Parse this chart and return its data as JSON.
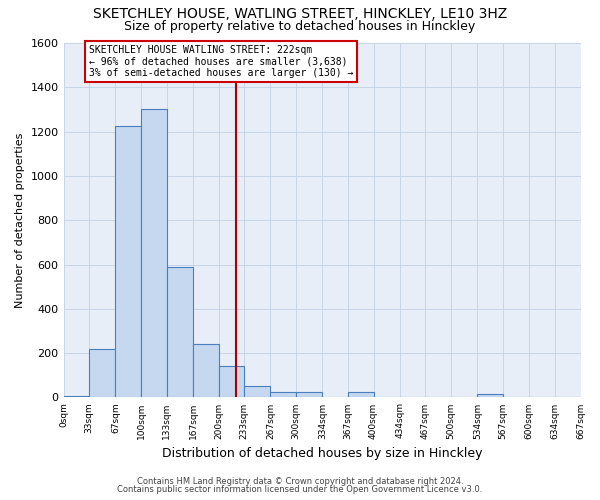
{
  "title": "SKETCHLEY HOUSE, WATLING STREET, HINCKLEY, LE10 3HZ",
  "subtitle": "Size of property relative to detached houses in Hinckley",
  "xlabel": "Distribution of detached houses by size in Hinckley",
  "ylabel": "Number of detached properties",
  "footer1": "Contains HM Land Registry data © Crown copyright and database right 2024.",
  "footer2": "Contains public sector information licensed under the Open Government Licence v3.0.",
  "bin_edges": [
    0,
    33,
    67,
    100,
    133,
    167,
    200,
    233,
    267,
    300,
    334,
    367,
    400,
    434,
    467,
    500,
    534,
    567,
    600,
    634,
    667
  ],
  "bar_values": [
    5,
    220,
    1225,
    1300,
    590,
    240,
    140,
    50,
    25,
    25,
    0,
    25,
    0,
    0,
    0,
    0,
    15,
    0,
    0,
    0
  ],
  "bar_color": "#c5d8f0",
  "bar_edge_color": "#4a7fbf",
  "property_size": 222,
  "vline_color": "#aa0000",
  "annotation_text": "SKETCHLEY HOUSE WATLING STREET: 222sqm\n← 96% of detached houses are smaller (3,638)\n3% of semi-detached houses are larger (130) →",
  "annotation_box_color": "#cc0000",
  "ylim": [
    0,
    1600
  ],
  "yticks": [
    0,
    200,
    400,
    600,
    800,
    1000,
    1200,
    1400,
    1600
  ],
  "grid_color": "#c8d4e8",
  "background_color": "#e8eef8",
  "title_fontsize": 10,
  "subtitle_fontsize": 9
}
